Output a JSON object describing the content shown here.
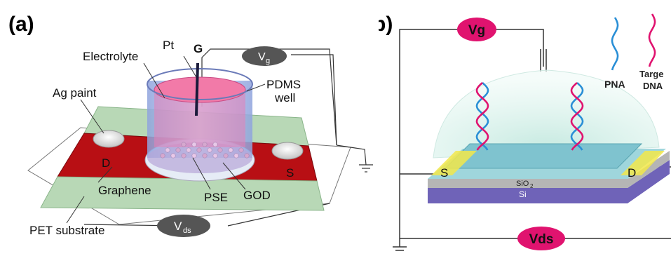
{
  "panel_a": {
    "panel_label": "(a)",
    "labels": {
      "pt": "Pt",
      "g": "G",
      "electrolyte": "Electrolyte",
      "vg": "V",
      "vg_sub": "g",
      "pdms_1": "PDMS",
      "pdms_2": "well",
      "ag_paint": "Ag paint",
      "d": "D",
      "s": "S",
      "graphene": "Graphene",
      "pse": "PSE",
      "god": "GOD",
      "pet": "PET substrate",
      "vds": "V",
      "vds_sub": "ds"
    },
    "colors": {
      "electrode_red": "#b80f14",
      "substrate_green": "#b8d8b6",
      "electrolyte_pink": "#f27aa8",
      "well_blue": "#a9b8e6",
      "badge_gray": "#555555"
    }
  },
  "panel_b": {
    "panel_label": "(b)",
    "labels": {
      "vg": "Vg",
      "vds": "Vds",
      "pna": "PNA",
      "target_1": "Targe",
      "target_2": "DNA",
      "s": "S",
      "d": "D",
      "sio2": "SiO",
      "sio2_sub": "2",
      "si": "Si"
    },
    "colors": {
      "badge_magenta": "#e0136f",
      "pna_blue": "#2a8fd6",
      "dna_pink": "#e0136f",
      "dome": "#d8f2ec",
      "channel": "#7fc3cf",
      "contact_yellow": "#f2e84a",
      "si_purple": "#6f63b8"
    }
  }
}
